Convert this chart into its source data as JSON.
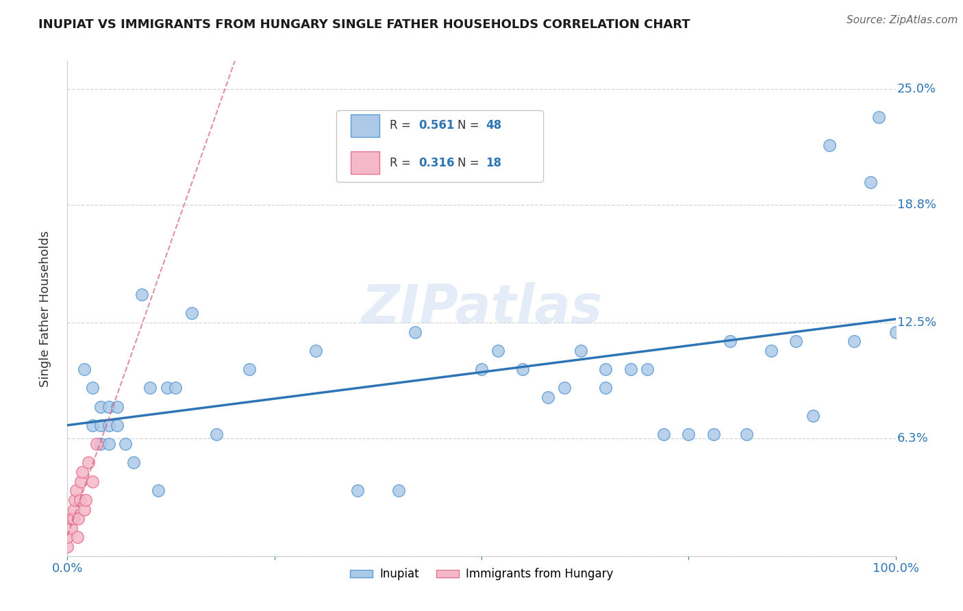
{
  "title": "INUPIAT VS IMMIGRANTS FROM HUNGARY SINGLE FATHER HOUSEHOLDS CORRELATION CHART",
  "source": "Source: ZipAtlas.com",
  "ylabel": "Single Father Households",
  "watermark": "ZIPatlas",
  "xlim": [
    0,
    1.0
  ],
  "ylim": [
    0,
    0.265
  ],
  "ytick_vals": [
    0.0,
    0.063,
    0.125,
    0.188,
    0.25
  ],
  "ytick_labels": [
    "",
    "6.3%",
    "12.5%",
    "18.8%",
    "25.0%"
  ],
  "xtick_vals": [
    0.0,
    0.25,
    0.5,
    0.75,
    1.0
  ],
  "xtick_labels": [
    "0.0%",
    "",
    "",
    "",
    "100.0%"
  ],
  "color_inupiat_fill": "#adc9e8",
  "color_inupiat_edge": "#5b9bd5",
  "color_hungary_fill": "#f4b8c8",
  "color_hungary_edge": "#e87090",
  "line_color_inupiat": "#2e75b6",
  "line_color_hungary": "#d46080",
  "inupiat_x": [
    0.02,
    0.03,
    0.03,
    0.04,
    0.04,
    0.04,
    0.05,
    0.05,
    0.05,
    0.06,
    0.06,
    0.07,
    0.08,
    0.09,
    0.1,
    0.11,
    0.12,
    0.13,
    0.15,
    0.18,
    0.22,
    0.3,
    0.35,
    0.4,
    0.42,
    0.5,
    0.52,
    0.55,
    0.58,
    0.6,
    0.62,
    0.65,
    0.65,
    0.68,
    0.7,
    0.72,
    0.75,
    0.78,
    0.8,
    0.82,
    0.85,
    0.88,
    0.9,
    0.92,
    0.95,
    0.97,
    0.98,
    1.0
  ],
  "inupiat_y": [
    0.1,
    0.09,
    0.07,
    0.06,
    0.07,
    0.08,
    0.06,
    0.07,
    0.08,
    0.07,
    0.08,
    0.06,
    0.05,
    0.14,
    0.09,
    0.035,
    0.09,
    0.09,
    0.13,
    0.065,
    0.1,
    0.11,
    0.035,
    0.035,
    0.12,
    0.1,
    0.11,
    0.1,
    0.085,
    0.09,
    0.11,
    0.09,
    0.1,
    0.1,
    0.1,
    0.065,
    0.065,
    0.065,
    0.115,
    0.065,
    0.11,
    0.115,
    0.075,
    0.22,
    0.115,
    0.2,
    0.235,
    0.12
  ],
  "hungary_x": [
    0.0,
    0.0,
    0.005,
    0.005,
    0.007,
    0.008,
    0.009,
    0.01,
    0.012,
    0.013,
    0.015,
    0.016,
    0.018,
    0.02,
    0.022,
    0.025,
    0.03,
    0.035
  ],
  "hungary_y": [
    0.005,
    0.01,
    0.015,
    0.02,
    0.02,
    0.025,
    0.03,
    0.035,
    0.01,
    0.02,
    0.03,
    0.04,
    0.045,
    0.025,
    0.03,
    0.05,
    0.04,
    0.06
  ],
  "background_color": "#ffffff",
  "grid_color": "#d0d0d0",
  "legend_r1": "0.561",
  "legend_n1": "48",
  "legend_r2": "0.316",
  "legend_n2": "18",
  "accent_color": "#2e75b6",
  "text_color": "#333333"
}
